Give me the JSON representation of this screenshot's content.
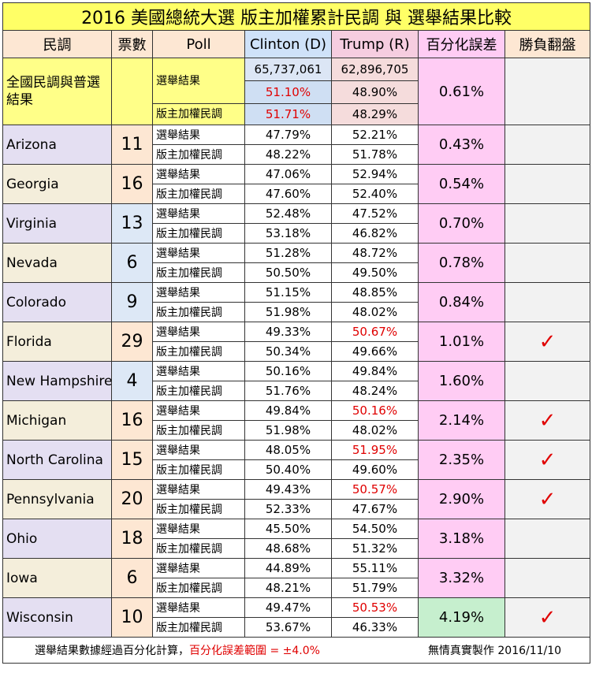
{
  "title": "2016  美國總統大選   版主加權累計民調 與 選舉結果比較",
  "headers": {
    "poll_source": "民調",
    "votes": "票數",
    "poll": "Poll",
    "clinton": "Clinton (D)",
    "trump": "Trump (R)",
    "error": "百分化誤差",
    "flip": "勝負翻盤"
  },
  "national": {
    "label": "全國民調與普選結果",
    "result_label": "選舉結果",
    "weighted_label": "版主加權民調",
    "clinton_votes": "65,737,061",
    "trump_votes": "62,896,705",
    "clinton_result_pct": "51.10%",
    "trump_result_pct": "48.90%",
    "clinton_poll_pct": "51.71%",
    "trump_poll_pct": "48.29%",
    "error": "0.61%"
  },
  "row_labels": {
    "result": "選舉結果",
    "poll": "版主加權民調"
  },
  "states": [
    {
      "name": "Arizona",
      "votes": "11",
      "c_res": "47.79%",
      "t_res": "52.21%",
      "c_poll": "48.22%",
      "t_poll": "51.78%",
      "error": "0.43%",
      "flip": ""
    },
    {
      "name": "Georgia",
      "votes": "16",
      "c_res": "47.06%",
      "t_res": "52.94%",
      "c_poll": "47.60%",
      "t_poll": "52.40%",
      "error": "0.54%",
      "flip": ""
    },
    {
      "name": "Virginia",
      "votes": "13",
      "c_res": "52.48%",
      "t_res": "47.52%",
      "c_poll": "53.18%",
      "t_poll": "46.82%",
      "error": "0.70%",
      "flip": ""
    },
    {
      "name": "Nevada",
      "votes": "6",
      "c_res": "51.28%",
      "t_res": "48.72%",
      "c_poll": "50.50%",
      "t_poll": "49.50%",
      "error": "0.78%",
      "flip": ""
    },
    {
      "name": "Colorado",
      "votes": "9",
      "c_res": "51.15%",
      "t_res": "48.85%",
      "c_poll": "51.98%",
      "t_poll": "48.02%",
      "error": "0.84%",
      "flip": ""
    },
    {
      "name": "Florida",
      "votes": "29",
      "c_res": "49.33%",
      "t_res": "50.67%",
      "c_poll": "50.34%",
      "t_poll": "49.66%",
      "error": "1.01%",
      "flip": "✓"
    },
    {
      "name": "New Hampshire",
      "votes": "4",
      "c_res": "50.16%",
      "t_res": "49.84%",
      "c_poll": "51.76%",
      "t_poll": "48.24%",
      "error": "1.60%",
      "flip": ""
    },
    {
      "name": "Michigan",
      "votes": "16",
      "c_res": "49.84%",
      "t_res": "50.16%",
      "c_poll": "51.98%",
      "t_poll": "48.02%",
      "error": "2.14%",
      "flip": "✓"
    },
    {
      "name": "North Carolina",
      "votes": "15",
      "c_res": "48.05%",
      "t_res": "51.95%",
      "c_poll": "50.40%",
      "t_poll": "49.60%",
      "error": "2.35%",
      "flip": "✓"
    },
    {
      "name": "Pennsylvania",
      "votes": "20",
      "c_res": "49.43%",
      "t_res": "50.57%",
      "c_poll": "52.33%",
      "t_poll": "47.67%",
      "error": "2.90%",
      "flip": "✓"
    },
    {
      "name": "Ohio",
      "votes": "18",
      "c_res": "45.50%",
      "t_res": "54.50%",
      "c_poll": "48.68%",
      "t_poll": "51.32%",
      "error": "3.18%",
      "flip": ""
    },
    {
      "name": "Iowa",
      "votes": "6",
      "c_res": "44.89%",
      "t_res": "55.11%",
      "c_poll": "48.21%",
      "t_poll": "51.79%",
      "error": "3.32%",
      "flip": ""
    },
    {
      "name": "Wisconsin",
      "votes": "10",
      "c_res": "49.47%",
      "t_res": "50.53%",
      "c_poll": "53.67%",
      "t_poll": "46.33%",
      "error": "4.19%",
      "flip": "✓"
    }
  ],
  "footer": {
    "note": "選舉結果數據經過百分化計算，",
    "note_red": "百分化誤差範圍 = ±4.0%",
    "credit": "無情真實製作  2016/11/10"
  },
  "colors": {
    "flip_mark": "#e00000",
    "title_bg": "#ffff66"
  }
}
